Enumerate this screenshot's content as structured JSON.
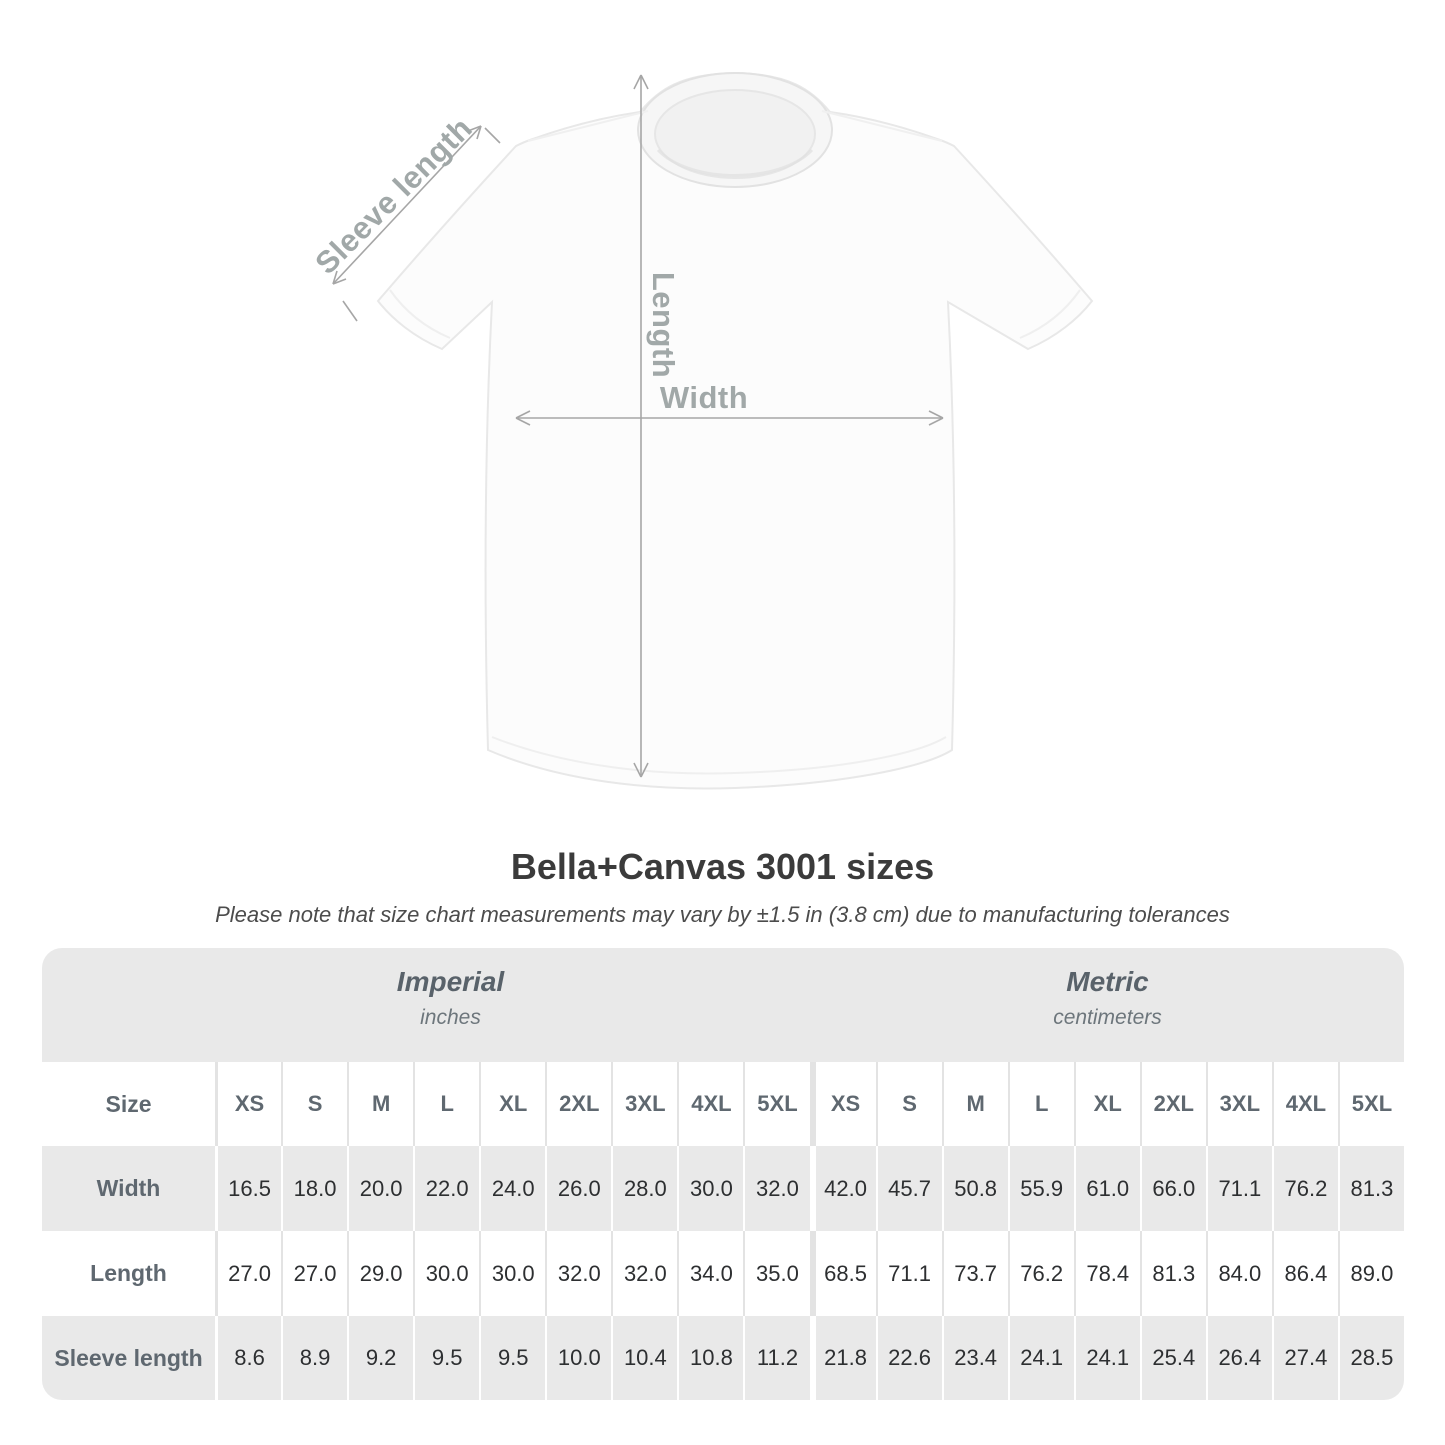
{
  "diagram": {
    "sleeve_label": "Sleeve length",
    "length_label": "Length",
    "width_label": "Width",
    "arrow_color": "#a6a6a6",
    "label_color": "#a1a8a8"
  },
  "header": {
    "title": "Bella+Canvas 3001 sizes",
    "note": "Please note that size chart measurements may vary by ±1.5 in (3.8 cm) due to manufacturing tolerances"
  },
  "size_chart": {
    "size_col_header": "Size",
    "groups": [
      {
        "label": "Imperial",
        "unit": "inches"
      },
      {
        "label": "Metric",
        "unit": "centimeters"
      }
    ],
    "sizes": [
      "XS",
      "S",
      "M",
      "L",
      "XL",
      "2XL",
      "3XL",
      "4XL",
      "5XL"
    ],
    "rows": [
      {
        "label": "Width",
        "imperial": [
          "16.5",
          "18.0",
          "20.0",
          "22.0",
          "24.0",
          "26.0",
          "28.0",
          "30.0",
          "32.0"
        ],
        "metric": [
          "42.0",
          "45.7",
          "50.8",
          "55.9",
          "61.0",
          "66.0",
          "71.1",
          "76.2",
          "81.3"
        ]
      },
      {
        "label": "Length",
        "imperial": [
          "27.0",
          "27.0",
          "29.0",
          "30.0",
          "30.0",
          "32.0",
          "32.0",
          "34.0",
          "35.0"
        ],
        "metric": [
          "68.5",
          "71.1",
          "73.7",
          "76.2",
          "78.4",
          "81.3",
          "84.0",
          "86.4",
          "89.0"
        ]
      },
      {
        "label": "Sleeve length",
        "imperial": [
          "8.6",
          "8.9",
          "9.2",
          "9.5",
          "9.5",
          "10.0",
          "10.4",
          "10.8",
          "11.2"
        ],
        "metric": [
          "21.8",
          "22.6",
          "23.4",
          "24.1",
          "24.1",
          "25.4",
          "26.4",
          "27.4",
          "28.5"
        ]
      }
    ],
    "colors": {
      "row_gray": "#e9e9e9",
      "divider_on_gray": "#ffffff",
      "divider_on_white": "#e3e3e3",
      "label_text": "#5f6870",
      "value_text": "#2d2f31"
    }
  },
  "chart_data": {
    "type": "table",
    "title": "Bella+Canvas 3001 sizes",
    "note": "Please note that size chart measurements may vary by ±1.5 in (3.8 cm) due to manufacturing tolerances",
    "column_groups": [
      "Imperial (inches)",
      "Metric (centimeters)"
    ],
    "sizes": [
      "XS",
      "S",
      "M",
      "L",
      "XL",
      "2XL",
      "3XL",
      "4XL",
      "5XL"
    ],
    "series": [
      {
        "name": "Width (in)",
        "values": [
          16.5,
          18.0,
          20.0,
          22.0,
          24.0,
          26.0,
          28.0,
          30.0,
          32.0
        ]
      },
      {
        "name": "Length (in)",
        "values": [
          27.0,
          27.0,
          29.0,
          30.0,
          30.0,
          32.0,
          32.0,
          34.0,
          35.0
        ]
      },
      {
        "name": "Sleeve length (in)",
        "values": [
          8.6,
          8.9,
          9.2,
          9.5,
          9.5,
          10.0,
          10.4,
          10.8,
          11.2
        ]
      },
      {
        "name": "Width (cm)",
        "values": [
          42.0,
          45.7,
          50.8,
          55.9,
          61.0,
          66.0,
          71.1,
          76.2,
          81.3
        ]
      },
      {
        "name": "Length (cm)",
        "values": [
          68.5,
          71.1,
          73.7,
          76.2,
          78.4,
          81.3,
          84.0,
          86.4,
          89.0
        ]
      },
      {
        "name": "Sleeve length (cm)",
        "values": [
          21.8,
          22.6,
          23.4,
          24.1,
          24.1,
          25.4,
          26.4,
          27.4,
          28.5
        ]
      }
    ]
  }
}
